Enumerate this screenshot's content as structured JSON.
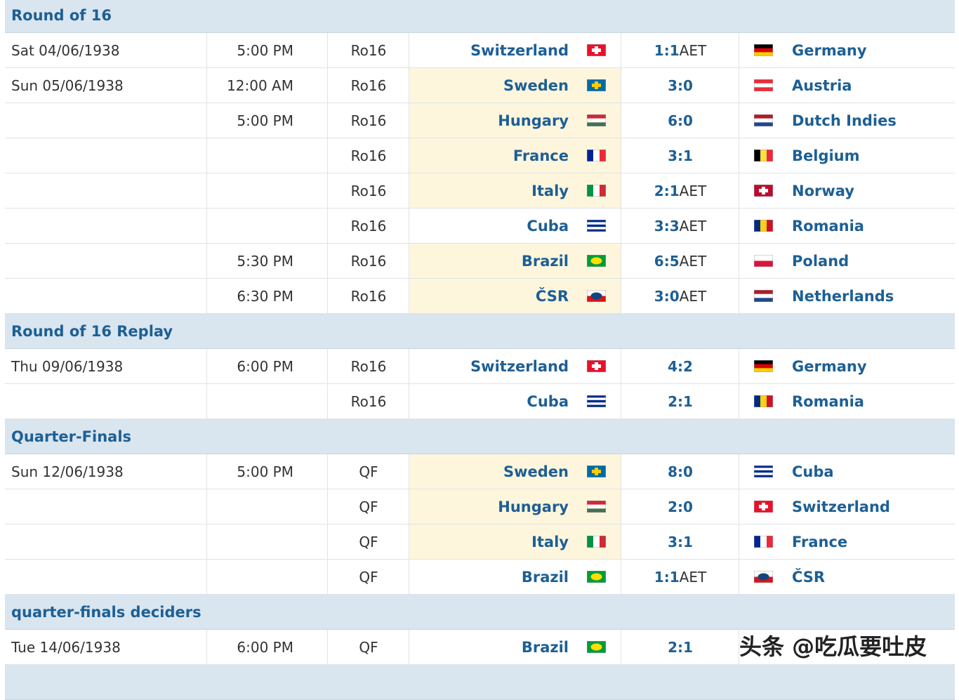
{
  "sections": [
    {
      "title": "Round of 16",
      "matches": [
        {
          "date": "Sat 04/06/1938",
          "time": "5:00 PM",
          "round": "Ro16",
          "home": "Switzerland",
          "home_flag": {
            "dir": "h",
            "colors": [
              "#e8112d"
            ],
            "cross": "#ffffff"
          },
          "score": "1:1",
          "score_note": "AET",
          "away": "Germany",
          "away_flag": {
            "dir": "h",
            "colors": [
              "#000000",
              "#dd0000",
              "#ffce00"
            ]
          },
          "highlight": false
        },
        {
          "date": "Sun 05/06/1938",
          "time": "12:00 AM",
          "round": "Ro16",
          "home": "Sweden",
          "home_flag": {
            "dir": "h",
            "colors": [
              "#006aa7"
            ],
            "cross": "#fecc00"
          },
          "score": "3:0",
          "away": "Austria",
          "away_flag": {
            "dir": "h",
            "colors": [
              "#ed2939",
              "#ffffff",
              "#ed2939"
            ]
          },
          "highlight": true
        },
        {
          "time": "5:00 PM",
          "round": "Ro16",
          "home": "Hungary",
          "home_flag": {
            "dir": "h",
            "colors": [
              "#ce2939",
              "#ffffff",
              "#477050"
            ]
          },
          "score": "6:0",
          "away": "Dutch Indies",
          "away_flag": {
            "dir": "h",
            "colors": [
              "#ae1c28",
              "#ffffff",
              "#21468b"
            ]
          },
          "highlight": true
        },
        {
          "round": "Ro16",
          "home": "France",
          "home_flag": {
            "dir": "v",
            "colors": [
              "#002395",
              "#ffffff",
              "#ed2939"
            ]
          },
          "score": "3:1",
          "away": "Belgium",
          "away_flag": {
            "dir": "v",
            "colors": [
              "#000000",
              "#fae042",
              "#ed2939"
            ]
          },
          "highlight": true
        },
        {
          "round": "Ro16",
          "home": "Italy",
          "home_flag": {
            "dir": "v",
            "colors": [
              "#009246",
              "#ffffff",
              "#ce2b37"
            ]
          },
          "score": "2:1",
          "score_note": "AET",
          "away": "Norway",
          "away_flag": {
            "dir": "h",
            "colors": [
              "#ba0c2f"
            ],
            "cross": "#ffffff"
          },
          "highlight": true
        },
        {
          "round": "Ro16",
          "home": "Cuba",
          "home_flag": {
            "dir": "h",
            "colors": [
              "#002a8f",
              "#ffffff",
              "#002a8f",
              "#ffffff",
              "#002a8f"
            ]
          },
          "score": "3:3",
          "score_note": "AET",
          "away": "Romania",
          "away_flag": {
            "dir": "v",
            "colors": [
              "#002b7f",
              "#fcd116",
              "#ce1126"
            ]
          },
          "highlight": false
        },
        {
          "time": "5:30 PM",
          "round": "Ro16",
          "home": "Brazil",
          "home_flag": {
            "dir": "h",
            "colors": [
              "#009c3b"
            ],
            "center": "#ffdf00"
          },
          "score": "6:5",
          "score_note": "AET",
          "away": "Poland",
          "away_flag": {
            "dir": "h",
            "colors": [
              "#ffffff",
              "#dc143c"
            ]
          },
          "highlight": true
        },
        {
          "time": "6:30 PM",
          "round": "Ro16",
          "home": "ČSR",
          "home_flag": {
            "dir": "h",
            "colors": [
              "#ffffff",
              "#d7141a"
            ],
            "center": "#11457e"
          },
          "score": "3:0",
          "score_note": "AET",
          "away": "Netherlands",
          "away_flag": {
            "dir": "h",
            "colors": [
              "#ae1c28",
              "#ffffff",
              "#21468b"
            ]
          },
          "highlight": true
        }
      ]
    },
    {
      "title": "Round of 16 Replay",
      "matches": [
        {
          "date": "Thu 09/06/1938",
          "time": "6:00 PM",
          "round": "Ro16",
          "home": "Switzerland",
          "home_flag": {
            "dir": "h",
            "colors": [
              "#e8112d"
            ],
            "cross": "#ffffff"
          },
          "score": "4:2",
          "away": "Germany",
          "away_flag": {
            "dir": "h",
            "colors": [
              "#000000",
              "#dd0000",
              "#ffce00"
            ]
          },
          "highlight": false
        },
        {
          "round": "Ro16",
          "home": "Cuba",
          "home_flag": {
            "dir": "h",
            "colors": [
              "#002a8f",
              "#ffffff",
              "#002a8f",
              "#ffffff",
              "#002a8f"
            ]
          },
          "score": "2:1",
          "away": "Romania",
          "away_flag": {
            "dir": "v",
            "colors": [
              "#002b7f",
              "#fcd116",
              "#ce1126"
            ]
          },
          "highlight": false
        }
      ]
    },
    {
      "title": "Quarter-Finals",
      "matches": [
        {
          "date": "Sun 12/06/1938",
          "time": "5:00 PM",
          "round": "QF",
          "home": "Sweden",
          "home_flag": {
            "dir": "h",
            "colors": [
              "#006aa7"
            ],
            "cross": "#fecc00"
          },
          "score": "8:0",
          "away": "Cuba",
          "away_flag": {
            "dir": "h",
            "colors": [
              "#002a8f",
              "#ffffff",
              "#002a8f",
              "#ffffff",
              "#002a8f"
            ]
          },
          "highlight": true
        },
        {
          "round": "QF",
          "home": "Hungary",
          "home_flag": {
            "dir": "h",
            "colors": [
              "#ce2939",
              "#ffffff",
              "#477050"
            ]
          },
          "score": "2:0",
          "away": "Switzerland",
          "away_flag": {
            "dir": "h",
            "colors": [
              "#e8112d"
            ],
            "cross": "#ffffff"
          },
          "highlight": true
        },
        {
          "round": "QF",
          "home": "Italy",
          "home_flag": {
            "dir": "v",
            "colors": [
              "#009246",
              "#ffffff",
              "#ce2b37"
            ]
          },
          "score": "3:1",
          "away": "France",
          "away_flag": {
            "dir": "v",
            "colors": [
              "#002395",
              "#ffffff",
              "#ed2939"
            ]
          },
          "highlight": true
        },
        {
          "round": "QF",
          "home": "Brazil",
          "home_flag": {
            "dir": "h",
            "colors": [
              "#009c3b"
            ],
            "center": "#ffdf00"
          },
          "score": "1:1",
          "score_note": "AET",
          "away": "ČSR",
          "away_flag": {
            "dir": "h",
            "colors": [
              "#ffffff",
              "#d7141a"
            ],
            "center": "#11457e"
          },
          "highlight": false
        }
      ]
    },
    {
      "title": "quarter-finals deciders",
      "matches": [
        {
          "date": "Tue 14/06/1938",
          "time": "6:00 PM",
          "round": "QF",
          "home": "Brazil",
          "home_flag": {
            "dir": "h",
            "colors": [
              "#009c3b"
            ],
            "center": "#ffdf00"
          },
          "score": "2:1",
          "highlight": false
        }
      ]
    }
  ],
  "watermark": "头条 @吃瓜要吐皮"
}
